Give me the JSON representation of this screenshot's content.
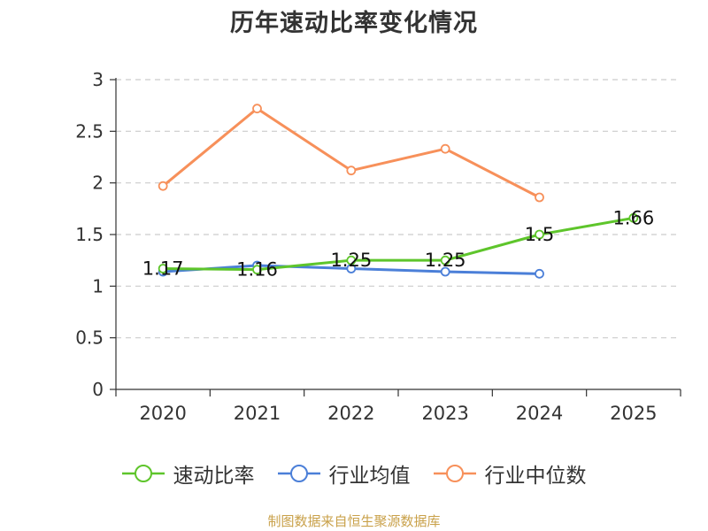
{
  "chart_data": {
    "type": "line",
    "title": "历年速动比率变化情况",
    "categories": [
      "2020",
      "2021",
      "2022",
      "2023",
      "2024",
      "2025"
    ],
    "ylim": [
      0,
      3
    ],
    "yticks": [
      0,
      0.5,
      1,
      1.5,
      2,
      2.5,
      3
    ],
    "grid": true,
    "legend_position": "bottom",
    "series": [
      {
        "name": "速动比率",
        "color": "#5ec52b",
        "values": [
          1.17,
          1.16,
          1.25,
          1.25,
          1.5,
          1.66
        ],
        "labels": [
          "1.17",
          "1.16",
          "1.25",
          "1.25",
          "1.5",
          "1.66"
        ]
      },
      {
        "name": "行业均值",
        "color": "#4b7fd8",
        "values": [
          1.14,
          1.2,
          1.17,
          1.14,
          1.12,
          null
        ]
      },
      {
        "name": "行业中位数",
        "color": "#f7905a",
        "values": [
          1.97,
          2.72,
          2.12,
          2.33,
          1.86,
          null
        ]
      }
    ]
  },
  "source": "制图数据来自恒生聚源数据库"
}
